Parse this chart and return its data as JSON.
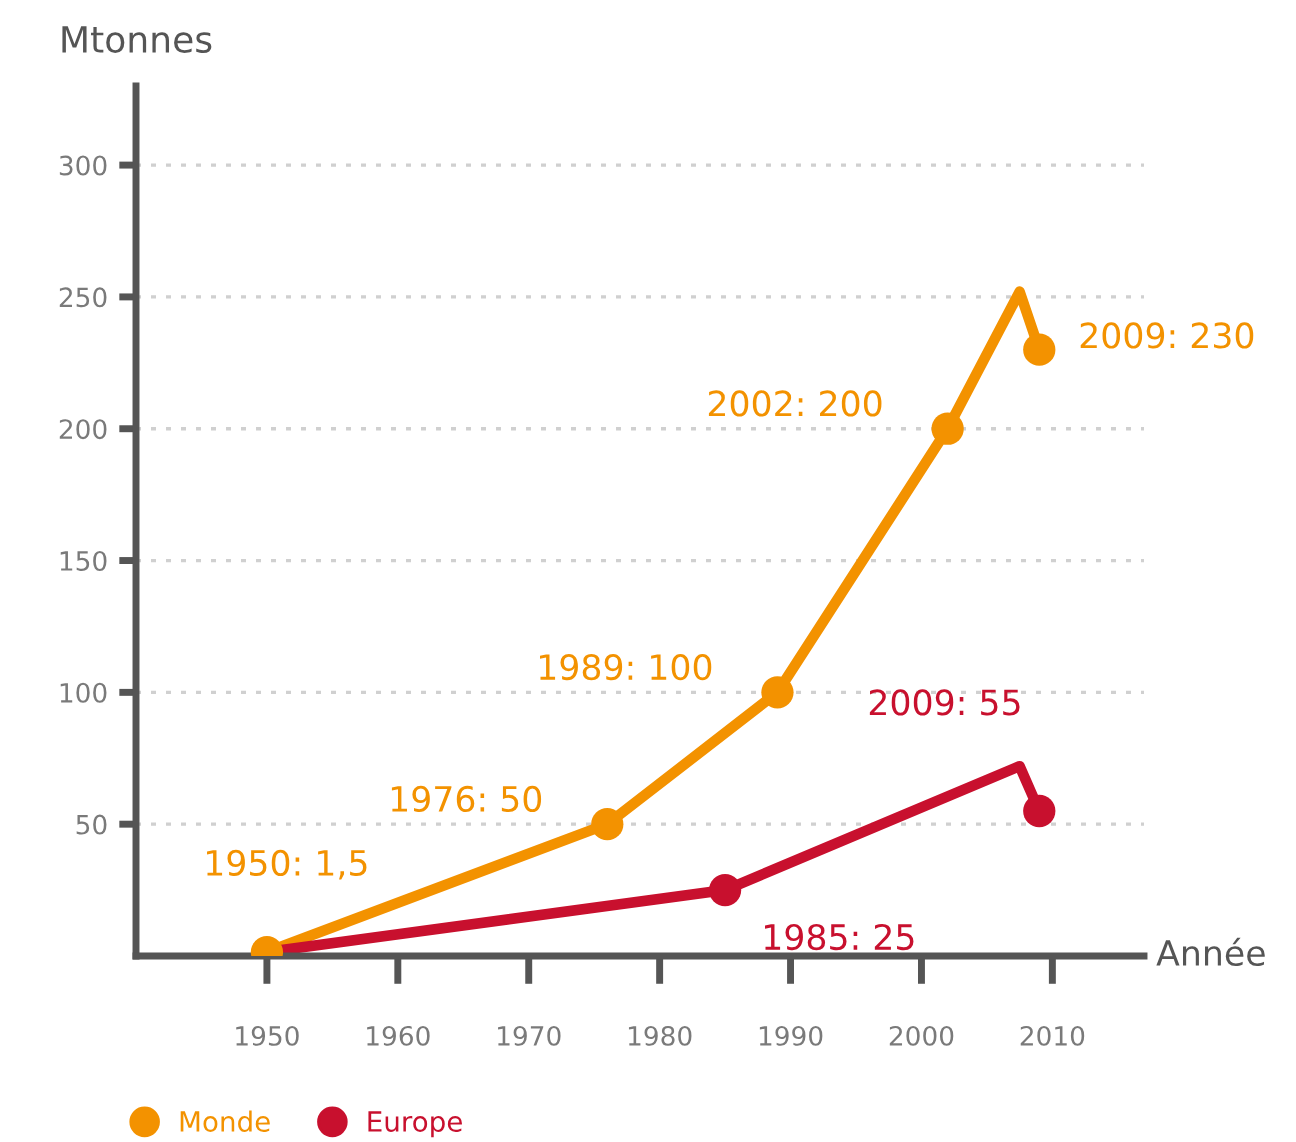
{
  "chart_data": {
    "type": "line",
    "xlabel": "Année",
    "ylabel": "Mtonnes",
    "xlim": [
      1940,
      2017
    ],
    "ylim": [
      0,
      330
    ],
    "xticks": [
      1950,
      1960,
      1970,
      1980,
      1990,
      2000,
      2010
    ],
    "yticks": [
      50,
      100,
      150,
      200,
      250,
      300
    ],
    "grid": "y",
    "legend": "bottom left",
    "line_style": "solid",
    "series": [
      {
        "color": "#f39200",
        "marker": "none",
        "x": [
          1950,
          1976,
          1989,
          2002,
          2007.5,
          2009
        ],
        "values": [
          1.5,
          50,
          100,
          200,
          252,
          230
        ]
      },
      {
        "color": "#c8102e",
        "marker": "none",
        "x": [
          1950,
          1985,
          2007.5,
          2009
        ],
        "values": [
          1.5,
          25,
          72,
          55
        ]
      },
      {
        "type": "scatter",
        "name": "Monde",
        "color": "#f39200",
        "marker": "circle",
        "x": [
          1950,
          1976,
          1989,
          2002,
          2009
        ],
        "values": [
          1.5,
          50,
          100,
          200,
          230
        ],
        "value_labels": [
          "1950: 1,5",
          "1976: 50",
          "1989: 100",
          "2002: 200",
          "2009: 230"
        ]
      },
      {
        "type": "scatter",
        "name": "Europe",
        "color": "#c8102e",
        "marker": "circle",
        "x": [
          1985,
          2009
        ],
        "values": [
          25,
          55
        ],
        "value_labels": [
          "1985: 25",
          "2009: 55"
        ]
      }
    ]
  }
}
